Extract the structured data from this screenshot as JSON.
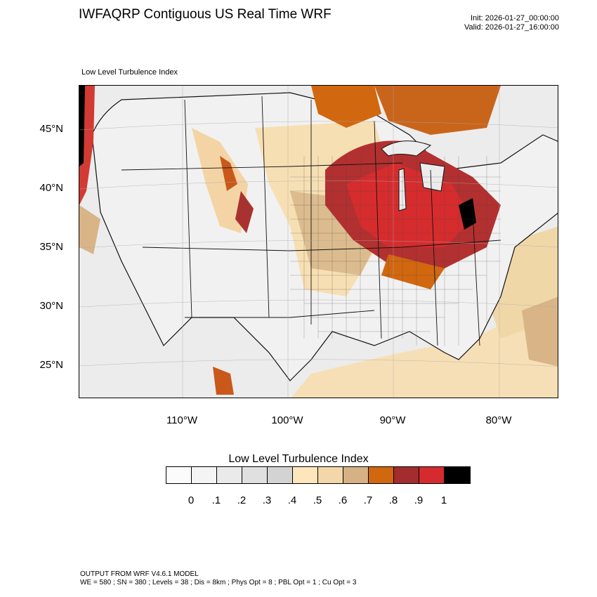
{
  "header": {
    "title": "IWFAQRP Contiguous US Real Time WRF",
    "init": "Init: 2026-01-27_00:00:00",
    "valid": "Valid: 2026-01-27_16:00:00",
    "subtitle": "Low Level Turbulence Index"
  },
  "axes": {
    "lat_labels": [
      "45°N",
      "40°N",
      "35°N",
      "30°N",
      "25°N"
    ],
    "lon_labels": [
      "110°W",
      "100°W",
      "90°W",
      "80°W"
    ]
  },
  "colorbar": {
    "title": "Low Level Turbulence Index",
    "colors": [
      "#fbfbfb",
      "#f4f4f4",
      "#eaeaea",
      "#e0e0e0",
      "#d3d3d3",
      "#fde6bb",
      "#f4d7a9",
      "#d5b183",
      "#d1670f",
      "#a22c2e",
      "#d52b2e",
      "#000000"
    ],
    "ticks": [
      "0",
      ".1",
      ".2",
      ".3",
      ".4",
      ".5",
      ".6",
      ".7",
      ".8",
      ".9",
      "1"
    ]
  },
  "footer": {
    "line1": "OUTPUT FROM WRF V4.6.1 MODEL",
    "line2": "WE = 580 ; SN = 380 ; Levels = 38 ; Dis = 8km ; Phys Opt = 8 ; PBL Opt = 1 ; Cu Opt = 3"
  }
}
